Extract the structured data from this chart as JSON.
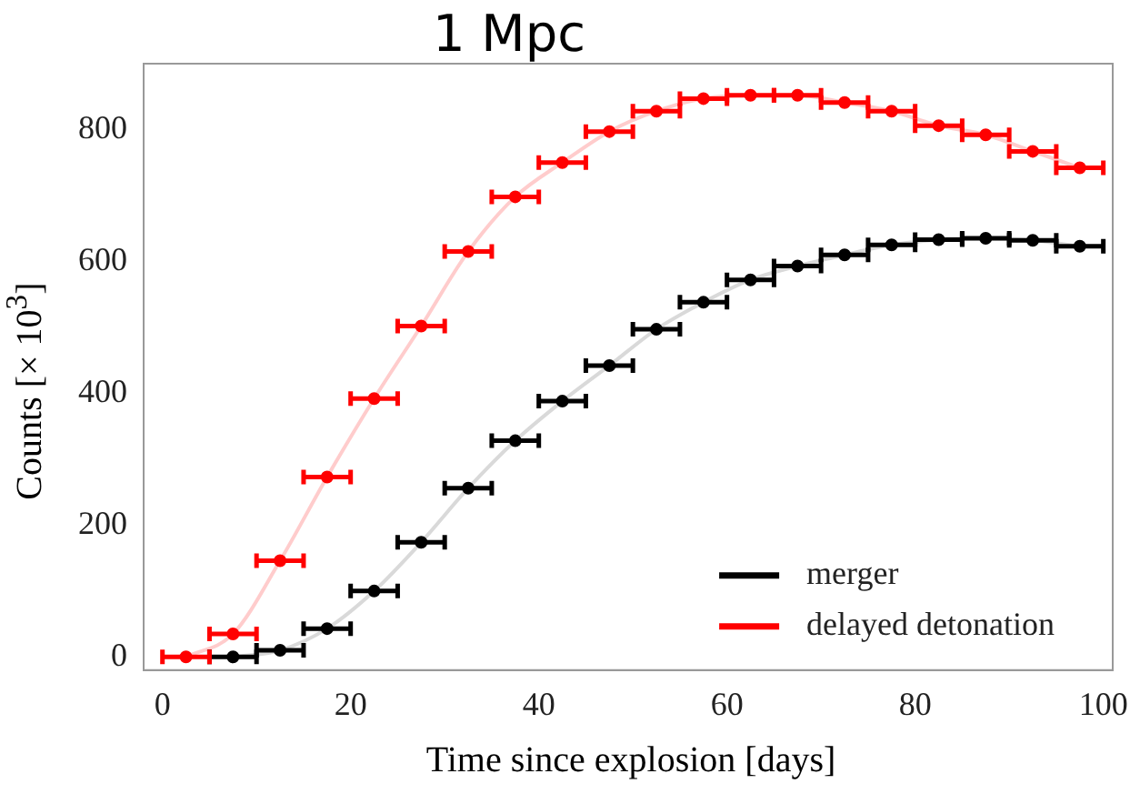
{
  "chart_data": {
    "type": "scatter",
    "title": "1 Mpc",
    "xlabel": "Time since explosion [days]",
    "ylabel": "Counts [× 10$^{3}$]",
    "xlim": [
      -2,
      101
    ],
    "ylim": [
      -20,
      900
    ],
    "xticks": [
      0,
      20,
      40,
      60,
      80,
      100
    ],
    "yticks": [
      0,
      200,
      400,
      600,
      800
    ],
    "grid": false,
    "legend": "bottom right",
    "marker": "circle",
    "x": [
      2.5,
      7.5,
      12.5,
      17.5,
      22.5,
      27.5,
      32.5,
      37.5,
      42.5,
      47.5,
      52.5,
      57.5,
      62.5,
      67.5,
      72.5,
      77.5,
      82.5,
      87.5,
      92.5,
      97.5
    ],
    "series": [
      {
        "type": "line",
        "color": "#d9d9d9",
        "marker": "none",
        "values": [
          null,
          0,
          10,
          43,
          100,
          174,
          256,
          328,
          388,
          442,
          497,
          538,
          572,
          593,
          610,
          625,
          633,
          635,
          632,
          623
        ]
      },
      {
        "type": "line",
        "color": "#ffcccc",
        "marker": "none",
        "values": [
          0,
          35,
          146,
          273,
          392,
          502,
          615,
          698,
          750,
          797,
          828,
          847,
          852,
          852,
          841,
          828,
          806,
          792,
          767,
          742
        ]
      },
      {
        "name": "merger",
        "color": "#000000",
        "values": [
          null,
          0,
          10,
          43,
          100,
          174,
          256,
          328,
          388,
          442,
          497,
          538,
          572,
          593,
          610,
          625,
          633,
          635,
          632,
          623
        ],
        "xerrors": [
          null,
          2.5,
          2.5,
          2.5,
          2.5,
          2.5,
          2.5,
          2.5,
          2.5,
          2.5,
          2.5,
          2.5,
          2.5,
          2.5,
          2.5,
          2.5,
          2.5,
          2.5,
          2.5,
          2.5
        ]
      },
      {
        "name": "delayed detonation",
        "color": "#ff0000",
        "values": [
          0,
          35,
          146,
          273,
          392,
          502,
          615,
          698,
          750,
          797,
          828,
          847,
          852,
          852,
          841,
          828,
          806,
          792,
          767,
          742
        ],
        "xerrors": [
          2.5,
          2.5,
          2.5,
          2.5,
          2.5,
          2.5,
          2.5,
          2.5,
          2.5,
          2.5,
          2.5,
          2.5,
          2.5,
          2.5,
          2.5,
          2.5,
          2.5,
          2.5,
          2.5,
          2.5
        ]
      }
    ]
  }
}
